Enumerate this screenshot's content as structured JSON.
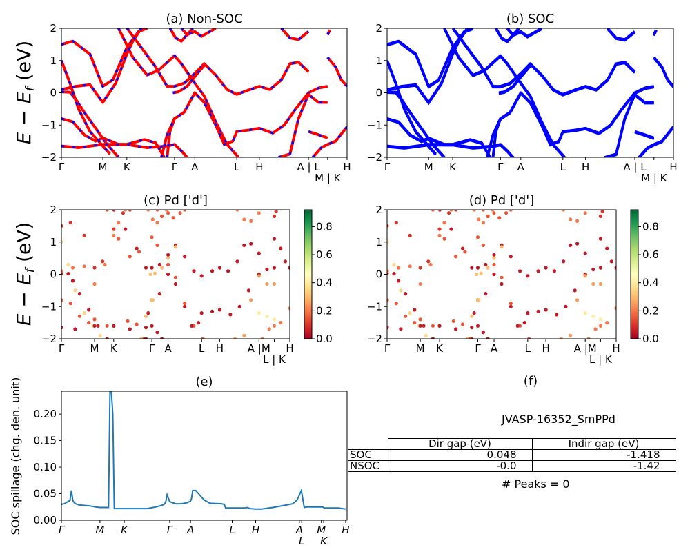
{
  "figure": {
    "material_id": "JVASP-16352_SmPPd",
    "peaks_text": "# Peaks = 0"
  },
  "gap_table": {
    "headers": [
      "Dir gap (eV)",
      "Indir gap (eV)"
    ],
    "rows": [
      {
        "label": "SOC",
        "dir": "0.048",
        "indir": "-1.418"
      },
      {
        "label": "NSOC",
        "dir": "-0.0",
        "indir": "-1.42"
      }
    ]
  },
  "colors": {
    "nonsoc_solid": "#ff0000",
    "nonsoc_dash": "#0000ff",
    "soc": "#0000ff",
    "spillage": "#1f77b4",
    "colormap": [
      "#a50026",
      "#d73027",
      "#f46d43",
      "#fdae61",
      "#fee08b",
      "#ffffbf",
      "#d9ef8b",
      "#a6d96a",
      "#66bd63",
      "#1a9850",
      "#006837"
    ]
  },
  "chart_data": [
    {
      "id": "a",
      "type": "line",
      "title": "(a) Non-SOC",
      "ylabel": "E − E_f (eV)",
      "ylim": [
        -2,
        2
      ],
      "yticks": [
        -2,
        -1,
        0,
        1,
        2
      ],
      "kpath": {
        "labels": [
          "Γ",
          "M",
          "K",
          "Γ",
          "A",
          "L",
          "H",
          "A | L",
          "M | K",
          "H"
        ],
        "positions": [
          0,
          0.145,
          0.229,
          0.396,
          0.467,
          0.614,
          0.693,
          0.865,
          0.932,
          1.0
        ]
      },
      "bands": [
        [
          [
            0,
            0.03
          ],
          [
            0.03,
            0.02
          ],
          [
            0.05,
            -0.2
          ],
          [
            0.08,
            -0.6
          ],
          [
            0.12,
            -1.1
          ],
          [
            0.16,
            -1.6
          ],
          [
            0.2,
            -2
          ]
        ],
        [
          [
            0,
            1.5
          ],
          [
            0.04,
            1.6
          ],
          [
            0.1,
            1.2
          ],
          [
            0.145,
            0.2
          ],
          [
            0.18,
            0.4
          ],
          [
            0.229,
            1.4
          ],
          [
            0.27,
            1.9
          ],
          [
            0.3,
            2
          ]
        ],
        [
          [
            0,
            1.0
          ],
          [
            0.03,
            0.3
          ],
          [
            0.06,
            -0.5
          ],
          [
            0.1,
            -1.2
          ],
          [
            0.14,
            -1.6
          ],
          [
            0.17,
            -1.9
          ]
        ],
        [
          [
            0,
            0.1
          ],
          [
            0.05,
            0.2
          ],
          [
            0.1,
            0.25
          ],
          [
            0.145,
            -0.3
          ],
          [
            0.19,
            0.3
          ],
          [
            0.229,
            1.2
          ],
          [
            0.25,
            1.6
          ],
          [
            0.28,
            2
          ]
        ],
        [
          [
            0,
            -0.8
          ],
          [
            0.04,
            -0.9
          ],
          [
            0.08,
            -1.3
          ],
          [
            0.12,
            -1.5
          ],
          [
            0.145,
            -1.4
          ],
          [
            0.2,
            -1.6
          ],
          [
            0.229,
            -1.6
          ],
          [
            0.29,
            -1.45
          ],
          [
            0.33,
            -1.55
          ],
          [
            0.36,
            -2
          ]
        ],
        [
          [
            0,
            -1.65
          ],
          [
            0.06,
            -1.7
          ],
          [
            0.145,
            -1.6
          ],
          [
            0.229,
            -1.6
          ],
          [
            0.3,
            -1.7
          ],
          [
            0.37,
            -1.65
          ],
          [
            0.396,
            -1.6
          ],
          [
            0.42,
            -1.8
          ],
          [
            0.44,
            -2
          ]
        ],
        [
          [
            0.2,
            2
          ],
          [
            0.25,
            1.1
          ],
          [
            0.3,
            0.55
          ],
          [
            0.34,
            0.7
          ],
          [
            0.396,
            1.15
          ],
          [
            0.42,
            0.9
          ],
          [
            0.467,
            0.3
          ],
          [
            0.5,
            -0.1
          ],
          [
            0.54,
            -0.9
          ],
          [
            0.58,
            -1.6
          ],
          [
            0.62,
            -2
          ]
        ],
        [
          [
            0.23,
            2
          ],
          [
            0.28,
            1.4
          ],
          [
            0.33,
            0.8
          ],
          [
            0.37,
            0.2
          ],
          [
            0.396,
            0.2
          ],
          [
            0.43,
            0.3
          ],
          [
            0.467,
            0.6
          ],
          [
            0.5,
            0.9
          ],
          [
            0.54,
            0.55
          ],
          [
            0.58,
            0.1
          ],
          [
            0.614,
            -0.05
          ],
          [
            0.66,
            0.1
          ],
          [
            0.693,
            0.2
          ],
          [
            0.73,
            0.1
          ],
          [
            0.77,
            0.4
          ],
          [
            0.8,
            0.9
          ],
          [
            0.83,
            0.95
          ],
          [
            0.865,
            0.65
          ]
        ],
        [
          [
            0.39,
            0.0
          ],
          [
            0.41,
            0.03
          ],
          [
            0.44,
            0.2
          ],
          [
            0.467,
            0.5
          ],
          [
            0.5,
            0.85
          ]
        ],
        [
          [
            0.37,
            -2
          ],
          [
            0.38,
            -1.2
          ],
          [
            0.396,
            -0.8
          ],
          [
            0.43,
            -0.6
          ],
          [
            0.467,
            0.0
          ],
          [
            0.5,
            -0.3
          ],
          [
            0.54,
            -1.0
          ],
          [
            0.57,
            -1.6
          ],
          [
            0.6,
            -1.5
          ],
          [
            0.614,
            -1.2
          ],
          [
            0.66,
            -1.15
          ],
          [
            0.693,
            -1.1
          ],
          [
            0.74,
            -1.25
          ],
          [
            0.78,
            -1.0
          ],
          [
            0.82,
            -0.5
          ],
          [
            0.865,
            0.0
          ],
          [
            0.9,
            0.15
          ],
          [
            0.932,
            0.2
          ]
        ],
        [
          [
            0.35,
            -2
          ],
          [
            0.37,
            -1.3
          ],
          [
            0.396,
            -0.8
          ],
          [
            0.4,
            -0.8
          ]
        ],
        [
          [
            0.76,
            -2
          ],
          [
            0.8,
            -1.9
          ],
          [
            0.83,
            -0.8
          ],
          [
            0.865,
            -0.05
          ],
          [
            0.9,
            -0.3
          ],
          [
            0.932,
            -0.3
          ]
        ],
        [
          [
            0.865,
            -1.2
          ],
          [
            0.9,
            -1.3
          ],
          [
            0.932,
            -1.4
          ]
        ],
        [
          [
            0.88,
            -2
          ],
          [
            0.91,
            -1.7
          ],
          [
            0.932,
            -1.6
          ],
          [
            0.96,
            -1.5
          ],
          [
            1.0,
            -1.05
          ]
        ],
        [
          [
            0.932,
            1.1
          ],
          [
            0.96,
            0.8
          ],
          [
            0.98,
            0.4
          ],
          [
            1.0,
            0.2
          ]
        ],
        [
          [
            0.38,
            2
          ],
          [
            0.4,
            1.7
          ],
          [
            0.42,
            1.6
          ],
          [
            0.44,
            1.8
          ],
          [
            0.46,
            2
          ]
        ],
        [
          [
            0.42,
            2
          ],
          [
            0.44,
            1.8
          ],
          [
            0.467,
            1.9
          ],
          [
            0.49,
            1.75
          ],
          [
            0.52,
            1.9
          ],
          [
            0.54,
            2
          ]
        ],
        [
          [
            0.77,
            2
          ],
          [
            0.8,
            1.7
          ],
          [
            0.83,
            1.65
          ],
          [
            0.865,
            1.9
          ]
        ],
        [
          [
            0.932,
            1.8
          ],
          [
            0.94,
            1.95
          ]
        ]
      ]
    },
    {
      "id": "b",
      "type": "line",
      "title": "(b) SOC",
      "ylim": [
        -2,
        2
      ],
      "yticks": [
        -2,
        -1,
        0,
        1,
        2
      ],
      "kpath": {
        "labels": [
          "Γ",
          "M",
          "K",
          "Γ",
          "A",
          "L",
          "H",
          "A | L",
          "M | K",
          "H"
        ],
        "positions": [
          0,
          0.145,
          0.229,
          0.396,
          0.467,
          0.614,
          0.693,
          0.865,
          0.932,
          1.0
        ]
      },
      "bands_same_as": "a"
    },
    {
      "id": "c",
      "type": "scatter",
      "title": "(c)  Pd ['d']",
      "ylabel": "E − E_f (eV)",
      "ylim": [
        -2,
        2
      ],
      "yticks": [
        -2,
        -1,
        0,
        1,
        2
      ],
      "kpath": {
        "labels": [
          "Γ",
          "M",
          "K",
          "Γ",
          "A",
          "L",
          "H",
          "A |M",
          "L | K",
          "H"
        ],
        "positions": [
          0,
          0.145,
          0.229,
          0.396,
          0.467,
          0.614,
          0.693,
          0.865,
          0.932,
          1.0
        ]
      },
      "colorbar": {
        "range": [
          0,
          0.92
        ],
        "ticks": [
          0.0,
          0.2,
          0.4,
          0.6,
          0.8
        ]
      },
      "band_weights": [
        0.05,
        0.1,
        0.35,
        0.2,
        0.15,
        0.05,
        0.15,
        0.05,
        0.3,
        0.05,
        0.3,
        0.25,
        0.4,
        0.2,
        0.05,
        0.2,
        0.15,
        0.2,
        0.1
      ]
    },
    {
      "id": "d",
      "type": "scatter",
      "title": "(d) Pd ['d']",
      "ylim": [
        -2,
        2
      ],
      "yticks": [
        -2,
        -1,
        0,
        1,
        2
      ],
      "kpath": {
        "labels": [
          "Γ",
          "M",
          "K",
          "Γ",
          "A",
          "L",
          "H",
          "A |M",
          "L | K",
          "H"
        ],
        "positions": [
          0,
          0.145,
          0.229,
          0.396,
          0.467,
          0.614,
          0.693,
          0.865,
          0.932,
          1.0
        ]
      },
      "colorbar": {
        "range": [
          0,
          0.92
        ],
        "ticks": [
          0.0,
          0.2,
          0.4,
          0.6,
          0.8
        ]
      },
      "band_weights_same_as": "c"
    },
    {
      "id": "e",
      "type": "line",
      "title": "(e)",
      "ylabel": "SOC spillage (chg. den. unit)",
      "ylim": [
        0,
        0.243
      ],
      "yticks": [
        0.0,
        0.05,
        0.1,
        0.15,
        0.2
      ],
      "ytick_labels": [
        "0.00",
        "0.05",
        "0.10",
        "0.15",
        "0.20"
      ],
      "kpath": {
        "labels": [
          "Γ",
          "M",
          "K",
          "Γ",
          "A",
          "L",
          "H",
          "A",
          "L",
          "M",
          "K",
          "H"
        ],
        "positions": [
          0,
          0.135,
          0.22,
          0.379,
          0.452,
          0.598,
          0.68,
          0.833,
          0.841,
          0.91,
          0.918,
          0.995
        ]
      },
      "series": [
        {
          "name": "spillage",
          "x": [
            0,
            0.01,
            0.02,
            0.025,
            0.03,
            0.035,
            0.04,
            0.045,
            0.05,
            0.06,
            0.08,
            0.1,
            0.12,
            0.135,
            0.165,
            0.17,
            0.175,
            0.18,
            0.185,
            0.2,
            0.22,
            0.26,
            0.3,
            0.33,
            0.35,
            0.36,
            0.365,
            0.37,
            0.379,
            0.4,
            0.42,
            0.44,
            0.452,
            0.455,
            0.46,
            0.47,
            0.48,
            0.5,
            0.52,
            0.56,
            0.57,
            0.575,
            0.6,
            0.64,
            0.65,
            0.66,
            0.68,
            0.7,
            0.74,
            0.78,
            0.81,
            0.825,
            0.835,
            0.84,
            0.85,
            0.86,
            0.9,
            0.915,
            0.92,
            0.95,
            0.97,
            0.995
          ],
          "y": [
            0.03,
            0.031,
            0.034,
            0.036,
            0.037,
            0.056,
            0.037,
            0.033,
            0.031,
            0.029,
            0.028,
            0.027,
            0.025,
            0.024,
            0.024,
            0.243,
            0.243,
            0.2,
            0.022,
            0.022,
            0.022,
            0.022,
            0.022,
            0.025,
            0.028,
            0.03,
            0.034,
            0.048,
            0.035,
            0.031,
            0.031,
            0.033,
            0.036,
            0.04,
            0.056,
            0.056,
            0.05,
            0.038,
            0.032,
            0.031,
            0.03,
            0.023,
            0.023,
            0.023,
            0.024,
            0.022,
            0.021,
            0.021,
            0.024,
            0.028,
            0.031,
            0.038,
            0.05,
            0.056,
            0.024,
            0.025,
            0.025,
            0.025,
            0.023,
            0.023,
            0.023,
            0.021
          ]
        }
      ]
    },
    {
      "id": "f",
      "type": "table",
      "title": "(f)"
    }
  ]
}
